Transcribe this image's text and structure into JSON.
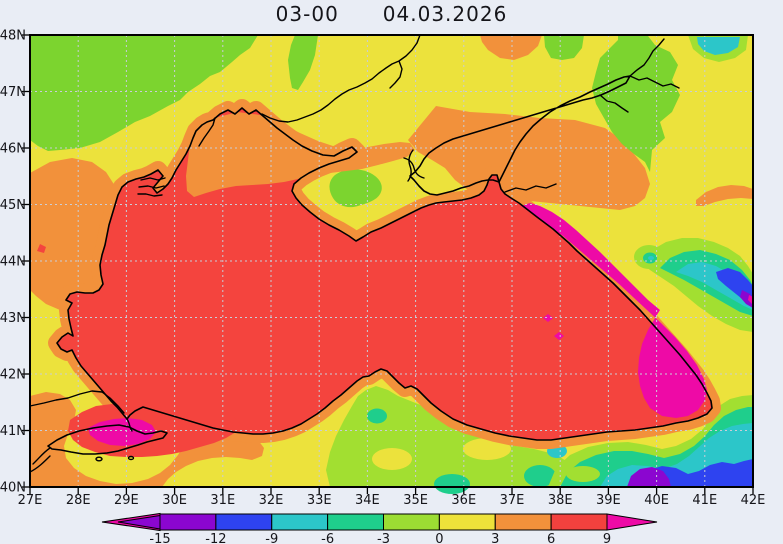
{
  "window": {
    "background": "#e9edf5"
  },
  "title": {
    "run_hour": "03-00",
    "date": "04.03.2026"
  },
  "axes": {
    "lat_labels": [
      "48N",
      "47N",
      "46N",
      "45N",
      "44N",
      "43N",
      "42N",
      "41N",
      "40N"
    ],
    "lon_labels": [
      "27E",
      "28E",
      "29E",
      "30E",
      "31E",
      "32E",
      "33E",
      "34E",
      "35E",
      "36E",
      "37E",
      "38E",
      "39E",
      "40E",
      "41E",
      "42E"
    ]
  },
  "colorbar": {
    "tick_labels": [
      "-15",
      "-12",
      "-9",
      "-6",
      "-3",
      "0",
      "3",
      "6",
      "9"
    ],
    "segment_colors": [
      "#8b06d0",
      "#2e43f0",
      "#2cc6c9",
      "#1fce8c",
      "#9cdd33",
      "#ede23a",
      "#f2913b",
      "#f2413e"
    ],
    "below_scale_outer_color": "#ee0aa6",
    "below_scale_inner_color": "#8b06d0",
    "above_scale_color": "#ee0aa6"
  },
  "map_palette": {
    "green": "#7cd42f",
    "yellow": "#ece23c",
    "orange": "#f2913b",
    "red": "#f4443e",
    "magenta": "#ee0aa6",
    "lime": "#a2df31",
    "emerald": "#1fce8c",
    "cyan": "#2cc6c9",
    "blue": "#2e43f0",
    "purple": "#8b06d0",
    "coastline": "#000000",
    "grid": "#c9cdd8",
    "text": "#15151a"
  }
}
